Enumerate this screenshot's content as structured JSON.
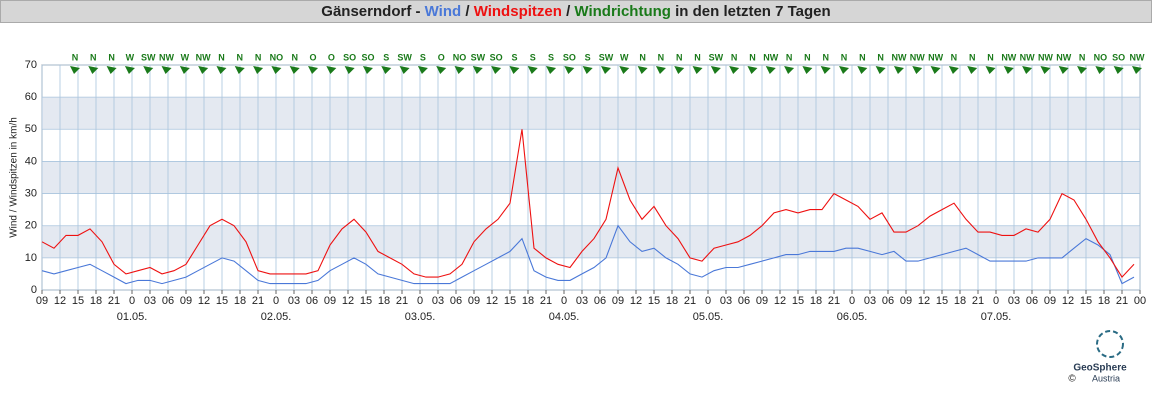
{
  "chart_data": {
    "type": "line",
    "title_parts": [
      "Gänserndorf",
      "-",
      "Wind",
      "/",
      "Windspitzen",
      "/",
      "Windrichtung",
      "in den letzten 7 Tagen"
    ],
    "ylabel": "Wind / Windspitzen in km/h",
    "ylim": [
      0,
      70
    ],
    "yticks": [
      0,
      10,
      20,
      30,
      40,
      50,
      60,
      70
    ],
    "xlim": [
      0,
      183
    ],
    "xticks": [
      {
        "value": 0,
        "label": "09"
      },
      {
        "value": 3,
        "label": "12"
      },
      {
        "value": 6,
        "label": "15"
      },
      {
        "value": 9,
        "label": "18"
      },
      {
        "value": 12,
        "label": "21"
      },
      {
        "value": 15,
        "label": "0"
      },
      {
        "value": 18,
        "label": "03"
      },
      {
        "value": 21,
        "label": "06"
      },
      {
        "value": 24,
        "label": "09"
      },
      {
        "value": 27,
        "label": "12"
      },
      {
        "value": 30,
        "label": "15"
      },
      {
        "value": 33,
        "label": "18"
      },
      {
        "value": 36,
        "label": "21"
      },
      {
        "value": 39,
        "label": "0"
      },
      {
        "value": 42,
        "label": "03"
      },
      {
        "value": 45,
        "label": "06"
      },
      {
        "value": 48,
        "label": "09"
      },
      {
        "value": 51,
        "label": "12"
      },
      {
        "value": 54,
        "label": "15"
      },
      {
        "value": 57,
        "label": "18"
      },
      {
        "value": 60,
        "label": "21"
      },
      {
        "value": 63,
        "label": "0"
      },
      {
        "value": 66,
        "label": "03"
      },
      {
        "value": 69,
        "label": "06"
      },
      {
        "value": 72,
        "label": "09"
      },
      {
        "value": 75,
        "label": "12"
      },
      {
        "value": 78,
        "label": "15"
      },
      {
        "value": 81,
        "label": "18"
      },
      {
        "value": 84,
        "label": "21"
      },
      {
        "value": 87,
        "label": "0"
      },
      {
        "value": 90,
        "label": "03"
      },
      {
        "value": 93,
        "label": "06"
      },
      {
        "value": 96,
        "label": "09"
      },
      {
        "value": 99,
        "label": "12"
      },
      {
        "value": 102,
        "label": "15"
      },
      {
        "value": 105,
        "label": "18"
      },
      {
        "value": 108,
        "label": "21"
      },
      {
        "value": 111,
        "label": "0"
      },
      {
        "value": 114,
        "label": "03"
      },
      {
        "value": 117,
        "label": "06"
      },
      {
        "value": 120,
        "label": "09"
      },
      {
        "value": 123,
        "label": "12"
      },
      {
        "value": 126,
        "label": "15"
      },
      {
        "value": 129,
        "label": "18"
      },
      {
        "value": 132,
        "label": "21"
      },
      {
        "value": 135,
        "label": "0"
      },
      {
        "value": 138,
        "label": "03"
      },
      {
        "value": 141,
        "label": "06"
      },
      {
        "value": 144,
        "label": "09"
      },
      {
        "value": 147,
        "label": "12"
      },
      {
        "value": 150,
        "label": "15"
      },
      {
        "value": 153,
        "label": "18"
      },
      {
        "value": 156,
        "label": "21"
      },
      {
        "value": 159,
        "label": "0"
      },
      {
        "value": 162,
        "label": "03"
      },
      {
        "value": 165,
        "label": "06"
      },
      {
        "value": 168,
        "label": "09"
      },
      {
        "value": 171,
        "label": "12"
      },
      {
        "value": 174,
        "label": "15"
      },
      {
        "value": 177,
        "label": "18"
      },
      {
        "value": 180,
        "label": "21"
      },
      {
        "value": 183,
        "label": "00"
      }
    ],
    "date_ticks": [
      {
        "value": 15,
        "label": "01.05."
      },
      {
        "value": 39,
        "label": "02.05."
      },
      {
        "value": 63,
        "label": "03.05."
      },
      {
        "value": 87,
        "label": "04.05."
      },
      {
        "value": 111,
        "label": "05.05."
      },
      {
        "value": 135,
        "label": "06.05."
      },
      {
        "value": 159,
        "label": "07.05."
      }
    ],
    "grid": true,
    "x": [
      0,
      2,
      4,
      6,
      8,
      10,
      12,
      14,
      16,
      18,
      20,
      22,
      24,
      26,
      28,
      30,
      32,
      34,
      36,
      38,
      40,
      42,
      44,
      46,
      48,
      50,
      52,
      54,
      56,
      58,
      60,
      62,
      64,
      66,
      68,
      70,
      72,
      74,
      76,
      78,
      80,
      82,
      84,
      86,
      88,
      90,
      92,
      94,
      96,
      98,
      100,
      102,
      104,
      106,
      108,
      110,
      112,
      114,
      116,
      118,
      120,
      122,
      124,
      126,
      128,
      130,
      132,
      134,
      136,
      138,
      140,
      142,
      144,
      146,
      148,
      150,
      152,
      154,
      156,
      158,
      160,
      162,
      164,
      166,
      168,
      170,
      172,
      174,
      176,
      178,
      180,
      182
    ],
    "series": [
      {
        "name": "Wind",
        "color": "#4a78d8",
        "values": [
          6,
          5,
          6,
          7,
          8,
          6,
          4,
          2,
          3,
          3,
          2,
          3,
          4,
          6,
          8,
          10,
          9,
          6,
          3,
          2,
          2,
          2,
          2,
          3,
          6,
          8,
          10,
          8,
          5,
          4,
          3,
          2,
          2,
          2,
          2,
          4,
          6,
          8,
          10,
          12,
          16,
          6,
          4,
          3,
          3,
          5,
          7,
          10,
          20,
          15,
          12,
          13,
          10,
          8,
          5,
          4,
          6,
          7,
          7,
          8,
          9,
          10,
          11,
          11,
          12,
          12,
          12,
          13,
          13,
          12,
          11,
          12,
          9,
          9,
          10,
          11,
          12,
          13,
          11,
          9,
          9,
          9,
          9,
          10,
          10,
          10,
          13,
          16,
          14,
          11,
          2,
          4
        ]
      },
      {
        "name": "Windspitzen",
        "color": "#ee1111",
        "values": [
          15,
          13,
          17,
          17,
          19,
          15,
          8,
          5,
          6,
          7,
          5,
          6,
          8,
          14,
          20,
          22,
          20,
          15,
          6,
          5,
          5,
          5,
          5,
          6,
          14,
          19,
          22,
          18,
          12,
          10,
          8,
          5,
          4,
          4,
          5,
          8,
          15,
          19,
          22,
          27,
          50,
          13,
          10,
          8,
          7,
          12,
          16,
          22,
          38,
          28,
          22,
          26,
          20,
          16,
          10,
          9,
          13,
          14,
          15,
          17,
          20,
          24,
          25,
          24,
          25,
          25,
          30,
          28,
          26,
          22,
          24,
          18,
          18,
          20,
          23,
          25,
          27,
          22,
          18,
          18,
          17,
          17,
          19,
          18,
          22,
          30,
          28,
          22,
          15,
          10,
          4,
          8
        ]
      }
    ],
    "direction": {
      "name": "Windrichtung",
      "color": "#1a7a1a",
      "labels": [
        "N",
        "N",
        "N",
        "W",
        "SW",
        "NW",
        "W",
        "NW",
        "N",
        "N",
        "N",
        "NO",
        "N",
        "O",
        "O",
        "SO",
        "SO",
        "S",
        "SW",
        "S",
        "O",
        "NO",
        "SW",
        "SO",
        "S",
        "S",
        "S",
        "SO",
        "S",
        "SW",
        "W",
        "N",
        "N",
        "N",
        "N",
        "SW",
        "N",
        "N",
        "NW",
        "N",
        "N",
        "N",
        "N",
        "N",
        "N",
        "NW",
        "NW",
        "NW",
        "N",
        "N",
        "N",
        "NW",
        "NW",
        "NW",
        "NW",
        "N",
        "NO",
        "SO",
        "NW"
      ]
    },
    "logo": {
      "name": "GeoSphere",
      "sub": "Austria",
      "copyright": "©"
    }
  }
}
